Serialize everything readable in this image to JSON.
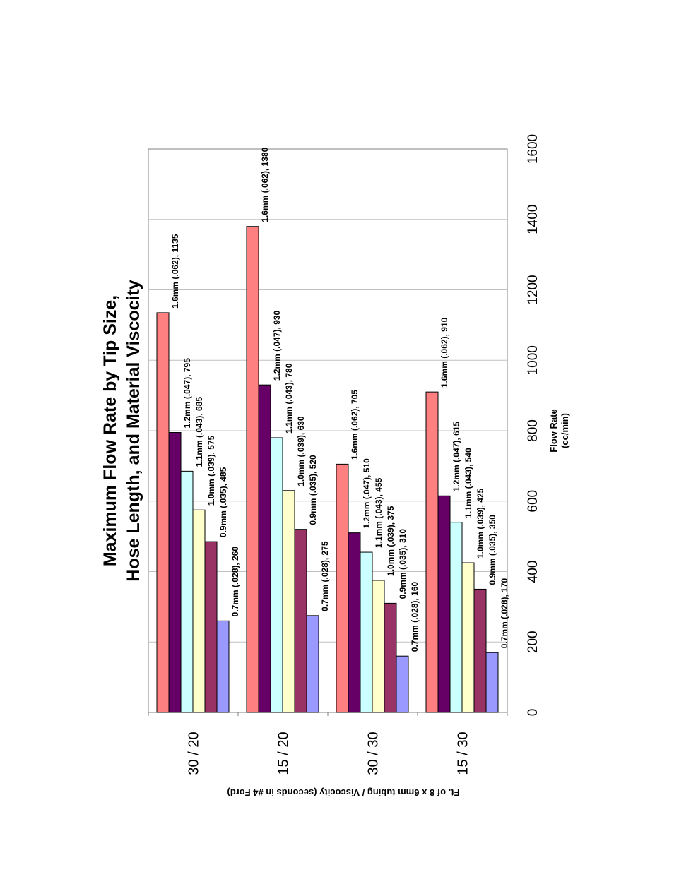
{
  "chart_data": {
    "type": "bar",
    "orientation": "horizontal-rotated",
    "title_line1": "Maximum Flow Rate by Tip Size,",
    "title_line2": "Hose Length, and Material Viscocity",
    "xlabel_line1": "Flow Rate",
    "xlabel_line2": "(cc/min)",
    "ylabel": "Ft. of 8 x 6mm tubing / Viscocity (seconds in #4 Ford)",
    "categories": [
      "30 / 20",
      "15 / 20",
      "30 / 30",
      "15 / 30"
    ],
    "xlim": [
      0,
      1600
    ],
    "ticks": [
      0,
      200,
      400,
      600,
      800,
      1000,
      1200,
      1400,
      1600
    ],
    "tick_labels": [
      "0",
      "200",
      "400",
      "600",
      "800",
      "1000",
      "1200",
      "1400",
      "1600"
    ],
    "grid": true,
    "series": [
      {
        "name": "1.6mm (.062)",
        "color": "#ff8080",
        "values": [
          1135,
          1380,
          705,
          910
        ]
      },
      {
        "name": "1.2mm (.047)",
        "color": "#660066",
        "values": [
          795,
          930,
          510,
          615
        ]
      },
      {
        "name": "1.1mm (.043)",
        "color": "#ccffff",
        "values": [
          685,
          780,
          455,
          540
        ]
      },
      {
        "name": "1.0mm (.039)",
        "color": "#ffffcc",
        "values": [
          575,
          630,
          375,
          425
        ]
      },
      {
        "name": "0.9mm (.035)",
        "color": "#993366",
        "values": [
          485,
          520,
          310,
          350
        ]
      },
      {
        "name": "0.7mm (.028)",
        "color": "#9999ff",
        "values": [
          260,
          275,
          160,
          170
        ]
      }
    ],
    "data_labels": [
      [
        "1.6mm (.062), 1135",
        "1.2mm (.047), 795",
        "1.1mm (.043), 685",
        "1.0mm (.039), 575",
        "0.9mm (.035), 485",
        "0.7mm (.028), 260"
      ],
      [
        "1.6mm (.062), 1380",
        "1.2mm (.047), 930",
        "1.1mm (.043), 780",
        "1.0mm (.039), 630",
        "0.9mm (.035), 520",
        "0.7mm (.028), 275"
      ],
      [
        "1.6mm (.062), 705",
        "1.2mm (.047), 510",
        "1.1mm (.043), 455",
        "1.0mm (.039), 375",
        "0.9mm (.035), 310",
        "0.7mm (.028), 160"
      ],
      [
        "1.6mm (.062), 910",
        "1.2mm (.047), 615",
        "1.1mm (.043), 540",
        "1.0mm (.039), 425",
        "0.9mm (.035), 350",
        "0.7mm (.028), 170"
      ]
    ]
  }
}
